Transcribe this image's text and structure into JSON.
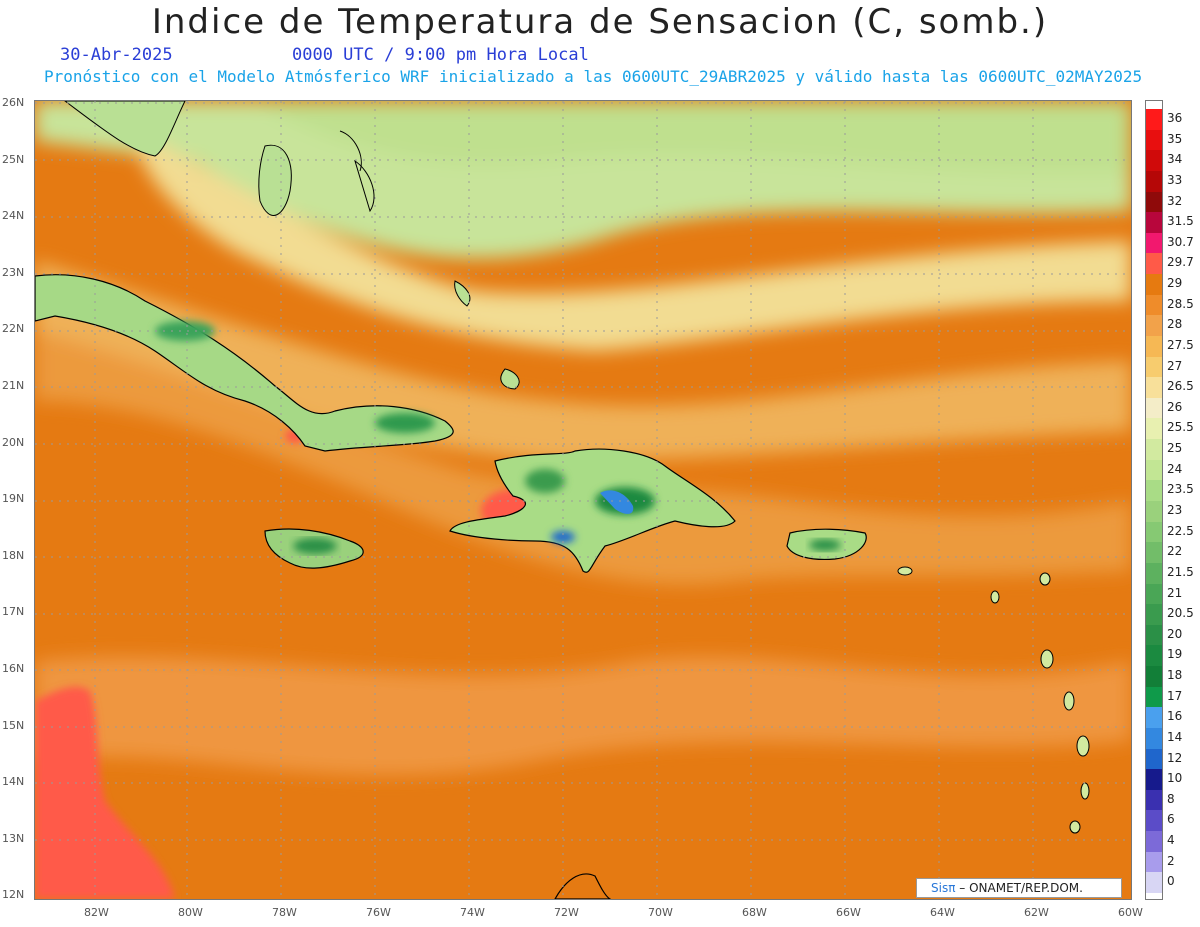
{
  "title": "Indice de Temperatura de Sensacion (C, somb.)",
  "date_label": "30-Abr-2025",
  "time_label": "0000 UTC / 9:00 pm Hora Local",
  "forecast_line": "Pronóstico con el Modelo Atmósferico WRF inicializado a las 0600UTC_29ABR2025 y válido hasta las  0600UTC_02MAY2025",
  "lat_labels": [
    "26N",
    "25N",
    "24N",
    "23N",
    "22N",
    "21N",
    "20N",
    "19N",
    "18N",
    "17N",
    "16N",
    "15N",
    "14N",
    "13N",
    "12N"
  ],
  "lon_labels": [
    "82W",
    "80W",
    "78W",
    "76W",
    "74W",
    "72W",
    "70W",
    "68W",
    "66W",
    "64W",
    "62W",
    "60W"
  ],
  "legend": {
    "values": [
      "36",
      "35",
      "34",
      "33",
      "32",
      "31.5",
      "30.7",
      "29.7",
      "29",
      "28.5",
      "28",
      "27.5",
      "27",
      "26.5",
      "26",
      "25.5",
      "25",
      "24",
      "23.5",
      "23",
      "22.5",
      "22",
      "21.5",
      "21",
      "20.5",
      "20",
      "19",
      "18",
      "17",
      "16",
      "14",
      "12",
      "10",
      "8",
      "6",
      "4",
      "2",
      "0"
    ],
    "colors": [
      "#ff1a1a",
      "#e80f0f",
      "#d00a0a",
      "#b50707",
      "#8f0a0a",
      "#b8063c",
      "#f2186e",
      "#ff5a48",
      "#e67a10",
      "#ef8c2a",
      "#f2a24a",
      "#f6b854",
      "#f7cc6e",
      "#f8e09a",
      "#f4edc8",
      "#e8f0b0",
      "#d2eaa0",
      "#c2e694",
      "#a9dc86",
      "#9ad17c",
      "#86c973",
      "#72bd69",
      "#5db15f",
      "#4aa656",
      "#3a9b4e",
      "#2b9047",
      "#1b8a40",
      "#127f38",
      "#0f9a4a",
      "#4aa0ee",
      "#3388e0",
      "#1f66cc",
      "#161a8c",
      "#3a30b0",
      "#5b4cc8",
      "#7c6ad8",
      "#a89cec",
      "#d8d6f4"
    ]
  },
  "credit": {
    "brand": "Sisπ",
    "text": "– ONAMET/REP.DOM."
  }
}
